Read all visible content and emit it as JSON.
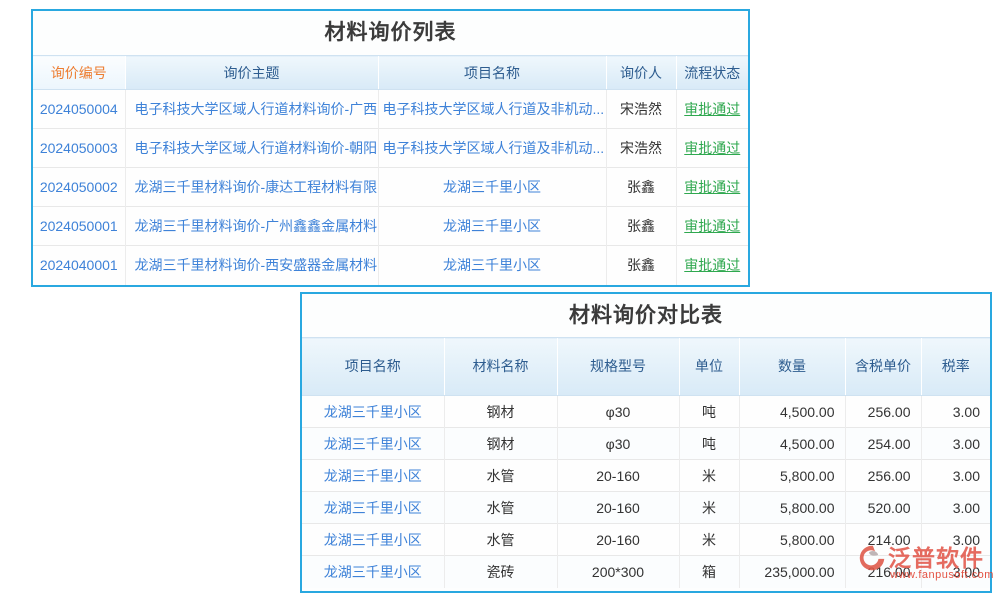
{
  "colors": {
    "panel_border": "#29a8e0",
    "header_text": "#2d5c8f",
    "sorted_header_text": "#ed7d31",
    "link_blue": "#3e82d8",
    "status_green": "#2fa84f",
    "body_text": "#333333",
    "watermark_red": "#e2574b"
  },
  "inquiry_table": {
    "title": "材料询价列表",
    "columns": [
      "询价编号",
      "询价主题",
      "项目名称",
      "询价人",
      "流程状态"
    ],
    "rows": [
      {
        "no": "2024050004",
        "subject": "电子科技大学区域人行道材料询价-广西...",
        "project": "电子科技大学区域人行道及非机动...",
        "person": "宋浩然",
        "status": "审批通过"
      },
      {
        "no": "2024050003",
        "subject": "电子科技大学区域人行道材料询价-朝阳...",
        "project": "电子科技大学区域人行道及非机动...",
        "person": "宋浩然",
        "status": "审批通过"
      },
      {
        "no": "2024050002",
        "subject": "龙湖三千里材料询价-康达工程材料有限...",
        "project": "龙湖三千里小区",
        "person": "张鑫",
        "status": "审批通过"
      },
      {
        "no": "2024050001",
        "subject": "龙湖三千里材料询价-广州鑫鑫金属材料...",
        "project": "龙湖三千里小区",
        "person": "张鑫",
        "status": "审批通过"
      },
      {
        "no": "2024040001",
        "subject": "龙湖三千里材料询价-西安盛器金属材料...",
        "project": "龙湖三千里小区",
        "person": "张鑫",
        "status": "审批通过"
      }
    ]
  },
  "compare_table": {
    "title": "材料询价对比表",
    "columns": [
      "项目名称",
      "材料名称",
      "规格型号",
      "单位",
      "数量",
      "含税单价",
      "税率"
    ],
    "rows": [
      [
        "龙湖三千里小区",
        "钢材",
        "φ30",
        "吨",
        "4,500.00",
        "256.00",
        "3.00"
      ],
      [
        "龙湖三千里小区",
        "钢材",
        "φ30",
        "吨",
        "4,500.00",
        "254.00",
        "3.00"
      ],
      [
        "龙湖三千里小区",
        "水管",
        "20-160",
        "米",
        "5,800.00",
        "256.00",
        "3.00"
      ],
      [
        "龙湖三千里小区",
        "水管",
        "20-160",
        "米",
        "5,800.00",
        "520.00",
        "3.00"
      ],
      [
        "龙湖三千里小区",
        "水管",
        "20-160",
        "米",
        "5,800.00",
        "214.00",
        "3.00"
      ],
      [
        "龙湖三千里小区",
        "瓷砖",
        "200*300",
        "箱",
        "235,000.00",
        "216.00",
        "3.00"
      ]
    ]
  },
  "watermark": {
    "brand": "泛普软件",
    "url": "www.fanpusoft.com"
  }
}
